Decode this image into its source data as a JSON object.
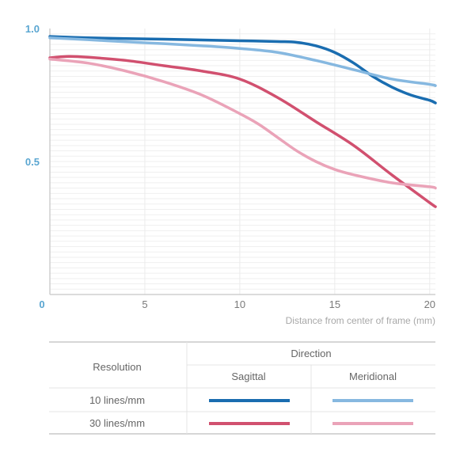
{
  "chart_data": {
    "type": "line",
    "xlabel": "Distance from center of frame (mm)",
    "xlim": [
      0,
      20.3
    ],
    "ylim": [
      0,
      1.0
    ],
    "xticks": [
      0,
      5,
      10,
      15,
      20
    ],
    "yticks": [
      0.5,
      1.0
    ],
    "ytick_labels": [
      "0.5",
      "1.0"
    ],
    "zero_label": "0",
    "grid": true,
    "series": [
      {
        "key": "s10",
        "color": "#1a6db0",
        "x": [
          0,
          2,
          4,
          6,
          8,
          10,
          12,
          13,
          14,
          15,
          16,
          17,
          18,
          19,
          20,
          20.3
        ],
        "y": [
          0.97,
          0.965,
          0.962,
          0.96,
          0.957,
          0.954,
          0.951,
          0.948,
          0.935,
          0.91,
          0.87,
          0.82,
          0.78,
          0.75,
          0.73,
          0.72
        ]
      },
      {
        "key": "m10",
        "color": "#86b8e0",
        "x": [
          0,
          2,
          4,
          6,
          8,
          10,
          12,
          14,
          16,
          18,
          20,
          20.3
        ],
        "y": [
          0.965,
          0.958,
          0.95,
          0.943,
          0.935,
          0.925,
          0.91,
          0.88,
          0.845,
          0.81,
          0.79,
          0.785
        ]
      },
      {
        "key": "s30",
        "color": "#d1506f",
        "x": [
          0,
          1,
          2,
          4,
          6,
          8,
          10,
          12,
          14,
          16,
          18,
          20,
          20.3
        ],
        "y": [
          0.89,
          0.895,
          0.892,
          0.88,
          0.86,
          0.84,
          0.81,
          0.74,
          0.65,
          0.56,
          0.45,
          0.345,
          0.33
        ]
      },
      {
        "key": "m30",
        "color": "#eaa3b8",
        "x": [
          0,
          2,
          4,
          6,
          8,
          10,
          11,
          12,
          13,
          14,
          15,
          16,
          18,
          20,
          20.3
        ],
        "y": [
          0.885,
          0.87,
          0.84,
          0.8,
          0.75,
          0.68,
          0.64,
          0.59,
          0.54,
          0.5,
          0.47,
          0.45,
          0.42,
          0.405,
          0.4
        ]
      }
    ]
  },
  "legend": {
    "resolution_header": "Resolution",
    "direction_header": "Direction",
    "sagittal": "Sagittal",
    "meridional": "Meridional",
    "row_10": "10 lines/mm",
    "row_30": "30 lines/mm"
  },
  "colors": {
    "axis_blue": "#5aa6d1",
    "sagittal_10": "#1a6db0",
    "meridional_10": "#86b8e0",
    "sagittal_30": "#d1506f",
    "meridional_30": "#eaa3b8"
  }
}
